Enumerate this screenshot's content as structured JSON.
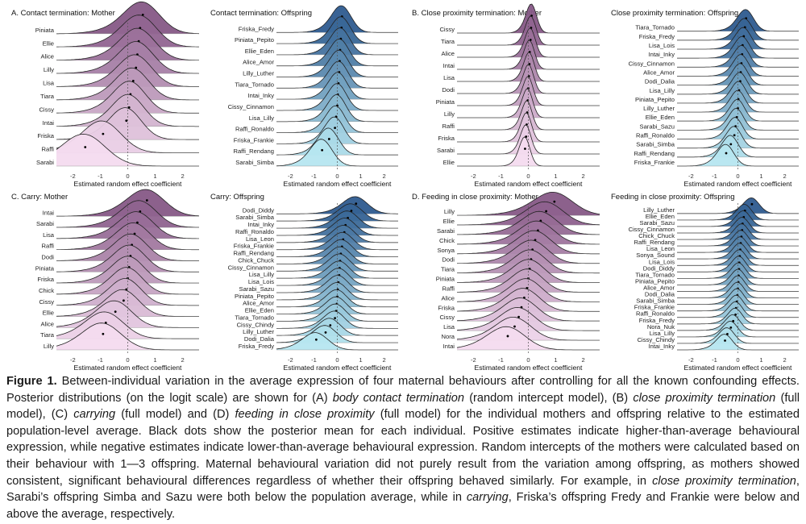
{
  "figure": {
    "x_axis_label": "Estimated random effect coefficient",
    "x_ticks": [
      -2,
      -1,
      0,
      1,
      2
    ],
    "colors": {
      "mother": [
        "#f4dbef",
        "#865886"
      ],
      "offspring": [
        "#b6e6f0",
        "#2e5b8f"
      ]
    },
    "panels": [
      {
        "title": "A. Contact termination: Mother",
        "palette": "mother",
        "labels": [
          "Piniata",
          "Ellie",
          "Alice",
          "Lilly",
          "Lisa",
          "Tiara",
          "Cissy",
          "Intai",
          "Friska",
          "Raffi",
          "Sarabi"
        ],
        "means": [
          0.55,
          0.45,
          0.4,
          0.35,
          0.3,
          0.2,
          0.1,
          0.05,
          -0.05,
          -0.9,
          -1.55
        ]
      },
      {
        "title": "Contact termination: Offspring",
        "palette": "offspring",
        "labels": [
          "Friska_Fredy",
          "Piniata_Pepito",
          "Ellie_Eden",
          "Alice_Amor",
          "Lilly_Luther",
          "Tiara_Tornado",
          "Intai_Inky",
          "Cissy_Cinnamon",
          "Lisa_Lilly",
          "Raffi_Ronaldo",
          "Friska_Frankie",
          "Raffi_Rendang",
          "Sarabi_Simba"
        ],
        "means": [
          0.2,
          0.18,
          0.15,
          0.12,
          0.1,
          0.08,
          0.05,
          0.02,
          0.0,
          -0.05,
          -0.1,
          -0.35,
          -0.65
        ]
      },
      {
        "title": "B. Close proximity termination: Mother",
        "palette": "mother",
        "labels": [
          "Cissy",
          "Tiara",
          "Alice",
          "Intai",
          "Lisa",
          "Dodi",
          "Piniata",
          "Lilly",
          "Raffi",
          "Friska",
          "Sarabi",
          "Ellie"
        ],
        "means": [
          0.12,
          0.1,
          0.08,
          0.05,
          0.04,
          0.02,
          0.0,
          -0.02,
          -0.04,
          -0.06,
          -0.08,
          -0.12
        ]
      },
      {
        "title": "Close proximity termination: Offspring",
        "palette": "offspring",
        "labels": [
          "Tiara_Tornado",
          "Friska_Fredy",
          "Lisa_Lois",
          "Intai_Inky",
          "Cissy_Cinnamon",
          "Alice_Amor",
          "Dodi_Dalia",
          "Lisa_Lilly",
          "Piniata_Pepito",
          "Lilly_Luther",
          "Ellie_Eden",
          "Sarabi_Sazu",
          "Raffi_Ronaldo",
          "Sarabi_Simba",
          "Raffi_Rendang",
          "Friska_Frankie"
        ],
        "means": [
          0.35,
          0.3,
          0.25,
          0.2,
          0.18,
          0.15,
          0.12,
          0.1,
          0.05,
          0.02,
          0.0,
          -0.05,
          -0.1,
          -0.15,
          -0.3,
          -0.5
        ]
      },
      {
        "title": "C. Carry: Mother",
        "palette": "mother",
        "labels": [
          "Intai",
          "Sarabi",
          "Lisa",
          "Raffi",
          "Dodi",
          "Piniata",
          "Friska",
          "Chick",
          "Cissy",
          "Ellie",
          "Alice",
          "Tiara",
          "Lilly"
        ],
        "means": [
          0.7,
          0.45,
          0.35,
          0.25,
          0.15,
          0.1,
          0.05,
          0.0,
          -0.05,
          -0.15,
          -0.45,
          -0.8,
          -0.9
        ]
      },
      {
        "title": "Carry: Offspring",
        "palette": "offspring",
        "labels": [
          "Dodi_Diddy",
          "Sarabi_Simba",
          "Intai_Inky",
          "Raffi_Ronaldo",
          "Lisa_Leon",
          "Friska_Frankie",
          "Raffi_Rendang",
          "Chick_Chuck",
          "Cissy_Cinnamon",
          "Lisa_Lilly",
          "Lisa_Lois",
          "Sarabi_Sazu",
          "Piniata_Pepito",
          "Alice_Amor",
          "Ellie_Eden",
          "Tiara_Tornado",
          "Cissy_Chindy",
          "Lilly_Luther",
          "Dodi_Dalia",
          "Friska_Fredy"
        ],
        "means": [
          0.8,
          0.6,
          0.45,
          0.35,
          0.3,
          0.25,
          0.2,
          0.15,
          0.12,
          0.1,
          0.08,
          0.05,
          0.02,
          0.0,
          -0.02,
          -0.05,
          -0.1,
          -0.3,
          -0.5,
          -0.9
        ]
      },
      {
        "title": "D. Feeding in close proximity: Mother",
        "palette": "mother",
        "labels": [
          "Lilly",
          "Ellie",
          "Sarabi",
          "Chick",
          "Sonya",
          "Dodi",
          "Tiara",
          "Piniata",
          "Raffi",
          "Alice",
          "Friska",
          "Cissy",
          "Lisa",
          "Nora",
          "Intai"
        ],
        "means": [
          0.95,
          0.65,
          0.45,
          0.35,
          0.25,
          0.15,
          0.1,
          0.05,
          0.0,
          -0.05,
          -0.15,
          -0.25,
          -0.35,
          -0.5,
          -0.75
        ]
      },
      {
        "title": "Feeding in close proximity: Offspring",
        "palette": "offspring",
        "labels": [
          "Lilly_Luther",
          "Ellie_Eden",
          "Sarabi_Sazu",
          "Cissy_Cinnamon",
          "Chick_Chuck",
          "Raffi_Rendang",
          "Lisa_Leon",
          "Sonya_Sound",
          "Lisa_Lois",
          "Dodi_Diddy",
          "Tiara_Tornado",
          "Piniata_Pepito",
          "Alice_Amor",
          "Dodi_Dalia",
          "Sarabi_Simba",
          "Friska_Frankie",
          "Raffi_Ronaldo",
          "Friska_Fredy",
          "Nora_Nuk",
          "Lisa_Lilly",
          "Cissy_Chindy",
          "Intai_Inky"
        ],
        "means": [
          0.6,
          0.3,
          0.25,
          0.2,
          0.18,
          0.15,
          0.12,
          0.1,
          0.08,
          0.06,
          0.05,
          0.03,
          0.02,
          0.0,
          -0.02,
          -0.05,
          -0.08,
          -0.1,
          -0.2,
          -0.3,
          -0.45,
          -0.55
        ]
      }
    ]
  },
  "caption": {
    "figure_label": "Figure 1.",
    "t1": " Between-individual variation in the average expression of four maternal behaviours after controlling for all the known confounding effects. Posterior distributions (on the logit scale) are shown for (A) ",
    "i1": "body contact termination",
    "t2": " (random intercept model), (B) ",
    "i2": "close proximity termination",
    "t3": " (full model), (C) ",
    "i3": "carrying",
    "t4": " (full model) and (D) ",
    "i4": "feeding in close proximity",
    "t5": " (full model) for the individual mothers and offspring relative to the estimated population-level average. Black dots show the posterior mean for each individual. Positive estimates indicate higher-than-average behavioural expression, while negative estimates indicate lower-than-average behavioural expression. Random intercepts of the mothers were calculated based on their behaviour with 1—3 offspring. Maternal behavioural variation did not purely result from the variation among offspring, as mothers showed consistent, significant behavioural differences regardless of whether their offspring behaved similarly. For example, in ",
    "i5": "close proximity termination",
    "t6": ", Sarabi’s offspring Simba and Sazu were both below the population average, while in ",
    "i6": "carrying",
    "t7": ", Friska’s offspring Fredy and Frankie were below and above the average, respectively."
  }
}
